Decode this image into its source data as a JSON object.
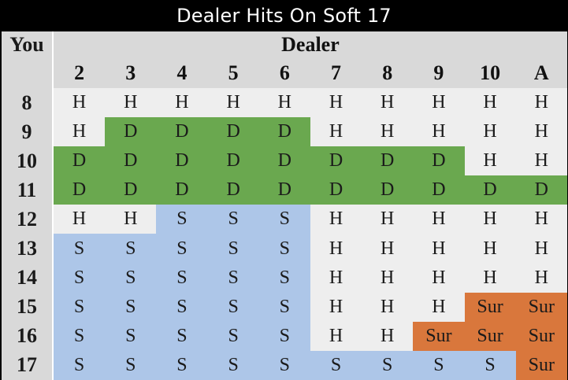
{
  "title": "Dealer Hits On Soft 17",
  "you_label": "You",
  "dealer_label": "Dealer",
  "dealer_cards": [
    "2",
    "3",
    "4",
    "5",
    "6",
    "7",
    "8",
    "9",
    "10",
    "A"
  ],
  "colors": {
    "H": "#eeeeee",
    "D": "#6aa84f",
    "S": "#adc6e8",
    "Sur": "#d9773c",
    "header": "#d9d9d9"
  },
  "rows": [
    {
      "hand": "8",
      "actions": [
        "H",
        "H",
        "H",
        "H",
        "H",
        "H",
        "H",
        "H",
        "H",
        "H"
      ]
    },
    {
      "hand": "9",
      "actions": [
        "H",
        "D",
        "D",
        "D",
        "D",
        "H",
        "H",
        "H",
        "H",
        "H"
      ]
    },
    {
      "hand": "10",
      "actions": [
        "D",
        "D",
        "D",
        "D",
        "D",
        "D",
        "D",
        "D",
        "H",
        "H"
      ]
    },
    {
      "hand": "11",
      "actions": [
        "D",
        "D",
        "D",
        "D",
        "D",
        "D",
        "D",
        "D",
        "D",
        "D"
      ]
    },
    {
      "hand": "12",
      "actions": [
        "H",
        "H",
        "S",
        "S",
        "S",
        "H",
        "H",
        "H",
        "H",
        "H"
      ]
    },
    {
      "hand": "13",
      "actions": [
        "S",
        "S",
        "S",
        "S",
        "S",
        "H",
        "H",
        "H",
        "H",
        "H"
      ]
    },
    {
      "hand": "14",
      "actions": [
        "S",
        "S",
        "S",
        "S",
        "S",
        "H",
        "H",
        "H",
        "H",
        "H"
      ]
    },
    {
      "hand": "15",
      "actions": [
        "S",
        "S",
        "S",
        "S",
        "S",
        "H",
        "H",
        "H",
        "Sur",
        "Sur"
      ]
    },
    {
      "hand": "16",
      "actions": [
        "S",
        "S",
        "S",
        "S",
        "S",
        "H",
        "H",
        "Sur",
        "Sur",
        "Sur"
      ]
    },
    {
      "hand": "17",
      "actions": [
        "S",
        "S",
        "S",
        "S",
        "S",
        "S",
        "S",
        "S",
        "S",
        "Sur"
      ]
    }
  ]
}
